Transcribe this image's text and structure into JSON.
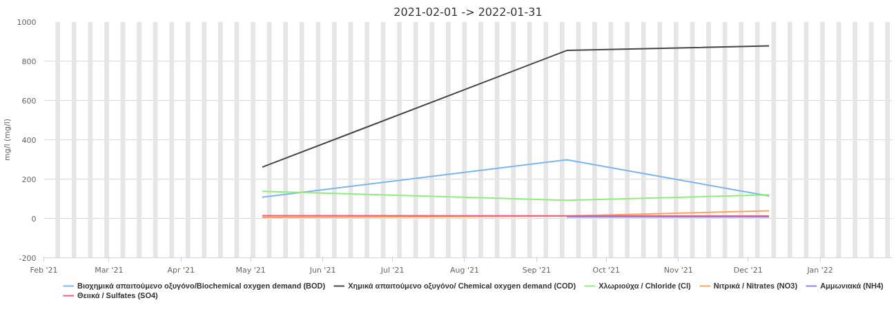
{
  "chart_data": {
    "type": "line",
    "title": "2021-02-01 -> 2022-01-31",
    "ylabel": "mg/l (mg/l)",
    "x": [
      "2021-05-06",
      "2021-09-14",
      "2021-12-10"
    ],
    "series": [
      {
        "name": "Βιοχημικά απαιτούμενο οξυγόνο/Biochemical oxygen demand (BOD)",
        "color": "#7cb5ec",
        "values": [
          108,
          298,
          114
        ]
      },
      {
        "name": "Χημικά απαιτούμενο οξυγόνο/ Chemical oxygen demand (COD)",
        "color": "#434348",
        "values": [
          261,
          854,
          877
        ]
      },
      {
        "name": "Χλωριούχα / Chloride (Cl)",
        "color": "#90ed7d",
        "values": [
          138,
          92,
          120
        ]
      },
      {
        "name": "Νιτρικά / Nitrates (NO3)",
        "color": "#f7a35c",
        "values": [
          5,
          12,
          39
        ]
      },
      {
        "name": "Αμμωνιακά (NH4)",
        "color": "#8085e9",
        "x": [
          "2021-09-14",
          "2021-12-10"
        ],
        "values": [
          8,
          8
        ]
      },
      {
        "name": "Θειικά / Sulfates (SO4)",
        "color": "#f15c80",
        "values": [
          14,
          13,
          12
        ]
      }
    ],
    "xlim": [
      "2021-02-01",
      "2022-02-01"
    ],
    "xticks": [
      {
        "value": "2021-02-01",
        "label": "Feb '21"
      },
      {
        "value": "2021-03-01",
        "label": "Mar '21"
      },
      {
        "value": "2021-04-01",
        "label": "Apr '21"
      },
      {
        "value": "2021-05-01",
        "label": "May '21"
      },
      {
        "value": "2021-06-01",
        "label": "Jun '21"
      },
      {
        "value": "2021-07-01",
        "label": "Jul '21"
      },
      {
        "value": "2021-08-01",
        "label": "Aug '21"
      },
      {
        "value": "2021-09-01",
        "label": "Sep '21"
      },
      {
        "value": "2021-10-01",
        "label": "Oct '21"
      },
      {
        "value": "2021-11-01",
        "label": "Nov '21"
      },
      {
        "value": "2021-12-01",
        "label": "Dec '21"
      },
      {
        "value": "2022-01-01",
        "label": "Jan '22"
      }
    ],
    "ylim": [
      -200,
      1000
    ],
    "yticks": [
      -200,
      0,
      200,
      400,
      600,
      800,
      1000
    ],
    "grid": "y",
    "legend": "bottom",
    "marker": "none",
    "line_style": "solid",
    "bands": [
      {
        "axis": "x",
        "from": "2021-02-06",
        "to": "2021-02-08",
        "color": "#e6e6e6"
      },
      {
        "axis": "x",
        "from": "2021-02-13",
        "to": "2021-02-15",
        "color": "#e6e6e6"
      },
      {
        "axis": "x",
        "from": "2021-02-20",
        "to": "2021-02-22",
        "color": "#e6e6e6"
      },
      {
        "axis": "x",
        "from": "2021-02-27",
        "to": "2021-03-01",
        "color": "#e6e6e6"
      },
      {
        "axis": "x",
        "from": "2021-03-06",
        "to": "2021-03-08",
        "color": "#e6e6e6"
      },
      {
        "axis": "x",
        "from": "2021-03-13",
        "to": "2021-03-15",
        "color": "#e6e6e6"
      },
      {
        "axis": "x",
        "from": "2021-03-20",
        "to": "2021-03-22",
        "color": "#e6e6e6"
      },
      {
        "axis": "x",
        "from": "2021-03-27",
        "to": "2021-03-29",
        "color": "#e6e6e6"
      },
      {
        "axis": "x",
        "from": "2021-04-03",
        "to": "2021-04-05",
        "color": "#e6e6e6"
      },
      {
        "axis": "x",
        "from": "2021-04-10",
        "to": "2021-04-12",
        "color": "#e6e6e6"
      },
      {
        "axis": "x",
        "from": "2021-04-17",
        "to": "2021-04-19",
        "color": "#e6e6e6"
      },
      {
        "axis": "x",
        "from": "2021-04-24",
        "to": "2021-04-26",
        "color": "#e6e6e6"
      },
      {
        "axis": "x",
        "from": "2021-05-01",
        "to": "2021-05-03",
        "color": "#e6e6e6"
      },
      {
        "axis": "x",
        "from": "2021-05-08",
        "to": "2021-05-10",
        "color": "#e6e6e6"
      },
      {
        "axis": "x",
        "from": "2021-05-15",
        "to": "2021-05-17",
        "color": "#e6e6e6"
      },
      {
        "axis": "x",
        "from": "2021-05-22",
        "to": "2021-05-24",
        "color": "#e6e6e6"
      },
      {
        "axis": "x",
        "from": "2021-05-29",
        "to": "2021-05-31",
        "color": "#e6e6e6"
      },
      {
        "axis": "x",
        "from": "2021-06-05",
        "to": "2021-06-07",
        "color": "#e6e6e6"
      },
      {
        "axis": "x",
        "from": "2021-06-12",
        "to": "2021-06-14",
        "color": "#e6e6e6"
      },
      {
        "axis": "x",
        "from": "2021-06-19",
        "to": "2021-06-21",
        "color": "#e6e6e6"
      },
      {
        "axis": "x",
        "from": "2021-06-26",
        "to": "2021-06-28",
        "color": "#e6e6e6"
      },
      {
        "axis": "x",
        "from": "2021-07-03",
        "to": "2021-07-05",
        "color": "#e6e6e6"
      },
      {
        "axis": "x",
        "from": "2021-07-10",
        "to": "2021-07-12",
        "color": "#e6e6e6"
      },
      {
        "axis": "x",
        "from": "2021-07-17",
        "to": "2021-07-19",
        "color": "#e6e6e6"
      },
      {
        "axis": "x",
        "from": "2021-07-24",
        "to": "2021-07-26",
        "color": "#e6e6e6"
      },
      {
        "axis": "x",
        "from": "2021-07-31",
        "to": "2021-08-02",
        "color": "#e6e6e6"
      },
      {
        "axis": "x",
        "from": "2021-08-07",
        "to": "2021-08-09",
        "color": "#e6e6e6"
      },
      {
        "axis": "x",
        "from": "2021-08-14",
        "to": "2021-08-16",
        "color": "#e6e6e6"
      },
      {
        "axis": "x",
        "from": "2021-08-21",
        "to": "2021-08-23",
        "color": "#e6e6e6"
      },
      {
        "axis": "x",
        "from": "2021-08-28",
        "to": "2021-08-30",
        "color": "#e6e6e6"
      },
      {
        "axis": "x",
        "from": "2021-09-04",
        "to": "2021-09-06",
        "color": "#e6e6e6"
      },
      {
        "axis": "x",
        "from": "2021-09-11",
        "to": "2021-09-13",
        "color": "#e6e6e6"
      },
      {
        "axis": "x",
        "from": "2021-09-18",
        "to": "2021-09-20",
        "color": "#e6e6e6"
      },
      {
        "axis": "x",
        "from": "2021-09-25",
        "to": "2021-09-27",
        "color": "#e6e6e6"
      },
      {
        "axis": "x",
        "from": "2021-10-02",
        "to": "2021-10-04",
        "color": "#e6e6e6"
      },
      {
        "axis": "x",
        "from": "2021-10-09",
        "to": "2021-10-11",
        "color": "#e6e6e6"
      },
      {
        "axis": "x",
        "from": "2021-10-16",
        "to": "2021-10-18",
        "color": "#e6e6e6"
      },
      {
        "axis": "x",
        "from": "2021-10-23",
        "to": "2021-10-25",
        "color": "#e6e6e6"
      },
      {
        "axis": "x",
        "from": "2021-10-30",
        "to": "2021-11-01",
        "color": "#e6e6e6"
      },
      {
        "axis": "x",
        "from": "2021-11-06",
        "to": "2021-11-08",
        "color": "#e6e6e6"
      },
      {
        "axis": "x",
        "from": "2021-11-13",
        "to": "2021-11-15",
        "color": "#e6e6e6"
      },
      {
        "axis": "x",
        "from": "2021-11-20",
        "to": "2021-11-22",
        "color": "#e6e6e6"
      },
      {
        "axis": "x",
        "from": "2021-11-27",
        "to": "2021-11-29",
        "color": "#e6e6e6"
      },
      {
        "axis": "x",
        "from": "2021-12-04",
        "to": "2021-12-06",
        "color": "#e6e6e6"
      },
      {
        "axis": "x",
        "from": "2021-12-11",
        "to": "2021-12-13",
        "color": "#e6e6e6"
      },
      {
        "axis": "x",
        "from": "2021-12-18",
        "to": "2021-12-20",
        "color": "#e6e6e6"
      },
      {
        "axis": "x",
        "from": "2021-12-25",
        "to": "2021-12-27",
        "color": "#e6e6e6"
      },
      {
        "axis": "x",
        "from": "2022-01-01",
        "to": "2022-01-03",
        "color": "#e6e6e6"
      },
      {
        "axis": "x",
        "from": "2022-01-08",
        "to": "2022-01-10",
        "color": "#e6e6e6"
      },
      {
        "axis": "x",
        "from": "2022-01-15",
        "to": "2022-01-17",
        "color": "#e6e6e6"
      },
      {
        "axis": "x",
        "from": "2022-01-22",
        "to": "2022-01-24",
        "color": "#e6e6e6"
      },
      {
        "axis": "x",
        "from": "2022-01-29",
        "to": "2022-01-31",
        "color": "#e6e6e6"
      }
    ]
  }
}
